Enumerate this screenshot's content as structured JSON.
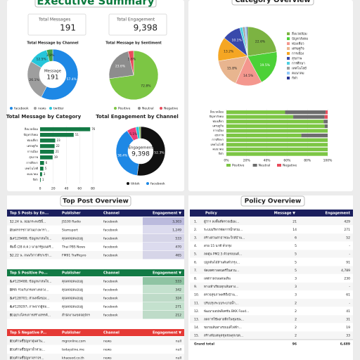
{
  "dashboard": {
    "title": "Executive Summary",
    "kpis": [
      {
        "label": "Total Messages",
        "value": "191"
      },
      {
        "label": "Total Engagement",
        "value": "9,398"
      }
    ]
  },
  "chart_data": [
    {
      "type": "donut",
      "title": "Total Message by Channel",
      "categories": [
        "facebook",
        "news",
        "twitter",
        null
      ],
      "values": [
        57.4,
        26.1,
        12.5,
        3.9
      ],
      "value_labels": [
        "57.4%",
        "26.1%",
        "12.5%",
        "3.9%"
      ],
      "colors": [
        "#1e88e5",
        "#9e9e9e",
        "#26c6da",
        "#43a047"
      ],
      "center_label": "Message",
      "center_value": "191"
    },
    {
      "type": "pie",
      "title": "Total Message by Sentiment",
      "categories": [
        "Positive",
        "Neutral",
        "Negative"
      ],
      "values": [
        72.8,
        23.6,
        3.6
      ],
      "value_labels": [
        "72.8%",
        "23.6%",
        "3.6%"
      ],
      "colors": [
        "#7cc644",
        "#8d8d8d",
        "#e94b5b"
      ]
    },
    {
      "type": "hbar",
      "title": "Total Message by Category",
      "categories": [
        "สิ่งแวดล้อม",
        "ปัญหาสังคม",
        "ท่องเที่ยว",
        "เศรษฐกิจ",
        "การเมือง",
        "สุขภาพ",
        "การศึกษา",
        "เทคโนโลยี",
        "คมนาคม",
        "กีฬา"
      ],
      "values": [
        76,
        51,
        23,
        22,
        21,
        19,
        6,
        5,
        3,
        1
      ],
      "color": "#137a45",
      "xlim": [
        0,
        80
      ],
      "xticks": [
        0,
        20,
        40,
        60,
        80
      ]
    },
    {
      "type": "donut",
      "title": "Total Engagement by Channel",
      "categories": [
        "tiktok",
        "facebook",
        null,
        null,
        null
      ],
      "values": [
        52.3,
        38.4,
        6.1,
        2.1,
        1.1
      ],
      "value_labels": [
        "52.3%",
        "38.4%",
        "6.1%",
        "2.1%",
        "1.1%"
      ],
      "colors": [
        "#111111",
        "#1e88e5",
        "#ec407a",
        "#26c6da",
        "#7cb342"
      ],
      "center_label": "Engagement",
      "center_value": "9,398"
    },
    {
      "type": "pie",
      "title": "Category Overview",
      "categories": [
        "สิ่งแวดล้อม",
        "ปัญหาสังคม",
        "ท่องเที่ยว",
        "เศรษฐกิจ",
        "การเมือง",
        "สุขภาพ",
        "การศึกษา",
        "เทคโนโลยี",
        "คมนาคม",
        "กีฬา"
      ],
      "values": [
        22.6,
        19.5,
        14.5,
        15.8,
        13.2,
        10.1,
        1.6,
        1.2,
        0.9,
        0.6
      ],
      "value_labels": [
        "22.6%",
        "19.5%",
        "14.5%",
        "15.8%",
        "13.2%",
        "10.1%",
        "1.6%",
        "1.2%",
        "0.9%",
        "0.6%"
      ],
      "colors": [
        "#7cb342",
        "#4cd137",
        "#f4978e",
        "#e8b58f",
        "#f5a623",
        "#3949ab",
        "#4dd0e1",
        "#9e9e9e",
        "#90caf9",
        "#283593"
      ]
    },
    {
      "type": "stacked_hbar",
      "categories": [
        "สิ่งแวดล้อม",
        "ปัญหาสังคม",
        "ท่องเที่ยว",
        "เศรษฐกิจ",
        "การเมือง",
        "สุขภาพ",
        "การศึกษา",
        "เทคโนโลยี",
        "คมนาคม",
        "กีฬา"
      ],
      "series": [
        {
          "name": "Positive",
          "color": "#7cc644",
          "values": [
            58,
            66,
            96,
            97,
            100,
            74,
            100,
            100,
            100,
            100
          ]
        },
        {
          "name": "Neutral",
          "color": "#6d6d6d",
          "values": [
            40,
            31,
            4,
            3,
            0,
            26,
            0,
            0,
            0,
            0
          ]
        },
        {
          "name": "Negative",
          "color": "#e94b5b",
          "values": [
            2,
            3,
            0,
            0,
            0,
            0,
            0,
            0,
            0,
            0
          ]
        }
      ],
      "xlim": [
        0,
        100
      ],
      "xticks": [
        {
          "value": 0,
          "label": "0%"
        },
        {
          "value": 20,
          "label": "20%"
        },
        {
          "value": 40,
          "label": "40%"
        },
        {
          "value": 60,
          "label": "60%"
        },
        {
          "value": 80,
          "label": "80%"
        },
        {
          "value": 100,
          "label": "100%"
        }
      ]
    }
  ],
  "sections": [
    "Top Post Overview",
    "Policy Overview"
  ],
  "tables": [
    {
      "header": [
        "Top 5 Posts by En...",
        "Publisher",
        "Channel",
        "Engagement ▼"
      ],
      "rows": [
        [
          "1.",
          "12.24 น. ลอยกระทงปีนี้...",
          "JS100 Radio",
          "facebook",
          "3,303"
        ],
        [
          "2.",
          "เกษตรกรชาวสวนยางพารา...",
          "Siamsport",
          "facebook",
          "1,249"
        ],
        [
          "3.",
          "&#129488; ข้อมูลน่าสนใจ...",
          "คุณหลอดแอบดู",
          "facebook",
          "533"
        ],
        [
          "4.",
          "วันนี้ (28 ต.ค.) นายกรัฐมนตรี...",
          "Thai PBS News",
          "facebook",
          "470"
        ],
        [
          "5.",
          "12.22 น. ถนนวิภาวดีขาเข้า...",
          "FM91 Trafficpro",
          "facebook",
          "465"
        ]
      ]
    },
    {
      "header": [
        "Top 5 Positive Po...",
        "Publisher",
        "Channel",
        "Engagement ▼"
      ],
      "rows": [
        [
          "1.",
          "&#129488; ข้อมูลน่าสนใจ...",
          "คุณหลอดแอบดู",
          "facebook",
          "533"
        ],
        [
          "2.",
          "BMA ร่วมกับกรมทางหลวง...",
          "คุณหลอดแอบดู",
          "facebook",
          "342"
        ],
        [
          "3.",
          "&#128701; ส่วนหนึ่งของ...",
          "คุณหลอดแอบดู",
          "facebook",
          "324"
        ],
        [
          "4.",
          "&#129297; ภาพจากผู้ชม...",
          "คุณหลอดแอบดู",
          "facebook",
          "271"
        ],
        [
          "5.",
          "ตัวอย่างโครงการสร้างสรรค์...",
          "สำนักงานเขตจตุจักร",
          "facebook",
          "212"
        ]
      ]
    },
    {
      "header": [
        "Top 5 Negative P...",
        "Publisher",
        "Channel",
        "Engagement ▼"
      ],
      "rows": [
        [
          "1.",
          "ฝ่ายค้านชี้ปัญหาฝุ่นควัน...",
          "mgronline.com",
          "news",
          "null"
        ],
        [
          "2.",
          "ฝ่ายค้านชี้ปัญหาน้ำท่วม...",
          "todaysline.me",
          "news",
          "null"
        ],
        [
          "3.",
          "ฝ่ายค้านชี้ปัญหาจราจร...",
          "khaosod.co.th",
          "news",
          "null"
        ]
      ]
    },
    {
      "header": [
        "Policy",
        "Message ▼",
        "Engagement"
      ],
      "rows": [
        [
          "1.",
          "ผู้ว่าฯ ลงพื้นที่ตรวจเยี่ยม...",
          "21",
          "429"
        ],
        [
          "2.",
          "ระบบบริหารจัดการน้ำท่วม...",
          "14",
          "271"
        ],
        [
          "3.",
          "สร้างสวนสาธารณะใกล้บ้าน...",
          "6",
          "52"
        ],
        [
          "4.",
          "สาย 15 นาที ทั่วกรุง",
          "5",
          "-"
        ],
        [
          "5.",
          "ลดฝุ่น PM2.5 ด้วยรถยนต์...",
          "5",
          "-"
        ],
        [
          "6.",
          "ปลูกต้นไม้ล้านต้นทั่วกรุง...",
          "5",
          "91"
        ],
        [
          "7.",
          "จัดเทศกาลดนตรีในสวน...",
          "5",
          "4,789"
        ],
        [
          "8.",
          "เทศกาลถนนคนเดิน",
          "3",
          "230"
        ],
        [
          "9.",
          "ทางเท้าเรียบทุกเส้นทาง...",
          "3",
          "-"
        ],
        [
          "10.",
          "ตรวจสุขภาพฟรีถึงบ้าน...",
          "3",
          "61"
        ],
        [
          "11.",
          "ปรับปรุงระบบระบายน้ำ...",
          "2",
          "-"
        ],
        [
          "12.",
          "พัฒนาแอปพลิเคชัน BKK Food...",
          "2",
          "41"
        ],
        [
          "13.",
          "ลดการใช้พลาสติกในชุมชน...",
          "2",
          "31"
        ],
        [
          "14.",
          "ขยายเส้นทางรถเมล์ไฟฟ้า...",
          "2",
          "19"
        ],
        [
          "15.",
          "สร้างห้องสมุดชุมชนทุกเขต...",
          "2",
          "33"
        ]
      ],
      "total": [
        "Grand total",
        "96",
        "6,689"
      ]
    }
  ]
}
